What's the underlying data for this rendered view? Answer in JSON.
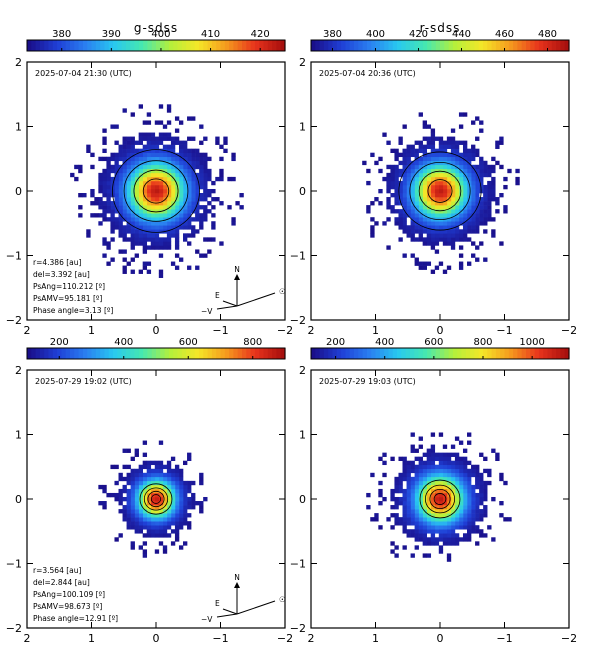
{
  "panels": [
    {
      "title": "g-sdss",
      "colorbar_ticks": [
        "380",
        "390",
        "400",
        "410",
        "420"
      ],
      "timestamp": "2025-07-04 21:30 (UTC)",
      "info": [
        "r=4.386 [au]",
        "del=3.392 [au]",
        "PsAng=110.212 [º]",
        "PsAMV=95.181 [º]",
        "Phase angle=3.13 [º]"
      ],
      "compass": {
        "north": "N",
        "east": "E",
        "velocity": "−V",
        "sun": "☉"
      }
    },
    {
      "title": "r-sdss",
      "colorbar_ticks": [
        "380",
        "400",
        "420",
        "440",
        "460",
        "480"
      ],
      "timestamp": "2025-07-04 20:36 (UTC)",
      "info": [],
      "compass": null
    },
    {
      "title": "",
      "colorbar_ticks": [
        "200",
        "400",
        "600",
        "800"
      ],
      "timestamp": "2025-07-29 19:02 (UTC)",
      "info": [
        "r=3.564 [au]",
        "del=2.844 [au]",
        "PsAng=100.109 [º]",
        "PsAMV=98.673 [º]",
        "Phase angle=12.91 [º]"
      ],
      "compass": {
        "north": "N",
        "east": "E",
        "velocity": "−V",
        "sun": "☉"
      }
    },
    {
      "title": "",
      "colorbar_ticks": [
        "200",
        "400",
        "600",
        "800",
        "1000"
      ],
      "timestamp": "2025-07-29 19:03 (UTC)",
      "info": [],
      "compass": null
    }
  ],
  "colormap": [
    "#1a0f8a",
    "#1f3fd6",
    "#2a7ff0",
    "#28c8f0",
    "#46e8b0",
    "#b4f03c",
    "#f5e628",
    "#f59a1e",
    "#e8341c",
    "#a8100e"
  ],
  "chart_data": [
    {
      "type": "heatmap",
      "title": "g-sdss",
      "x_ticks": [
        "2",
        "1",
        "0",
        "−1",
        "−2"
      ],
      "y_ticks": [
        "2",
        "1",
        "0",
        "−1",
        "−2"
      ],
      "xlim": [
        2,
        -2
      ],
      "ylim": [
        -2,
        2
      ],
      "colorbar_range": [
        373,
        425
      ],
      "peak_xy": [
        0,
        0
      ],
      "extent_radius": 0.9
    },
    {
      "type": "heatmap",
      "title": "r-sdss",
      "x_ticks": [
        "2",
        "1",
        "0",
        "−1",
        "−2"
      ],
      "y_ticks": [
        "2",
        "1",
        "0",
        "−1",
        "−2"
      ],
      "xlim": [
        2,
        -2
      ],
      "ylim": [
        -2,
        2
      ],
      "colorbar_range": [
        370,
        490
      ],
      "peak_xy": [
        0,
        0
      ],
      "extent_radius": 0.85
    },
    {
      "type": "heatmap",
      "title": "",
      "x_ticks": [
        "2",
        "1",
        "0",
        "−1",
        "−2"
      ],
      "y_ticks": [
        "2",
        "1",
        "0",
        "−1",
        "−2"
      ],
      "xlim": [
        2,
        -2
      ],
      "ylim": [
        -2,
        2
      ],
      "colorbar_range": [
        100,
        900
      ],
      "peak_xy": [
        0,
        0
      ],
      "extent_radius": 0.6
    },
    {
      "type": "heatmap",
      "title": "",
      "x_ticks": [
        "2",
        "1",
        "0",
        "−1",
        "−2"
      ],
      "y_ticks": [
        "2",
        "1",
        "0",
        "−1",
        "−2"
      ],
      "xlim": [
        2,
        -2
      ],
      "ylim": [
        -2,
        2
      ],
      "colorbar_range": [
        100,
        1150
      ],
      "peak_xy": [
        0,
        0
      ],
      "extent_radius": 0.75
    }
  ]
}
